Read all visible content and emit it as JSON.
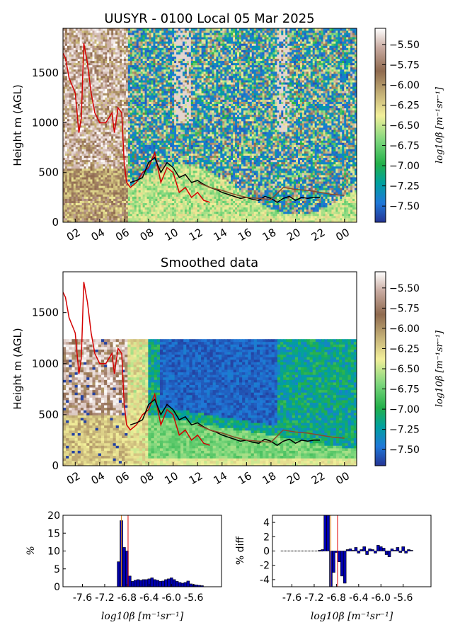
{
  "figure": {
    "title": "UUSYR - 0100 Local 05 Mar 2025",
    "smoothed_title": "Smoothed data",
    "ylabel": "Height m (AGL)",
    "colorbar_label": "log10β [m⁻¹sr⁻¹]",
    "hist_ylabel": "%",
    "diff_ylabel": "% diff",
    "hist_xlabel": "log10β [m⁻¹sr⁻¹]"
  },
  "colors": {
    "red_line": "#d40000",
    "black_line": "#000000",
    "brown_line": "#8b4a2b",
    "bar_fill": "#0000b0",
    "vline_orange": "#d08020",
    "vline_red": "#e00000"
  },
  "chart_data": [
    {
      "type": "heatmap",
      "title": "UUSYR - 0100 Local 05 Mar 2025",
      "ylabel": "Height m (AGL)",
      "xticks": [
        "02",
        "04",
        "06",
        "08",
        "10",
        "12",
        "14",
        "16",
        "18",
        "20",
        "22",
        "00"
      ],
      "yticks": [
        0,
        500,
        1000,
        1500
      ],
      "ylim": [
        0,
        1950
      ],
      "colorbar": {
        "label": "log10β [m⁻¹sr⁻¹]",
        "range": [
          -7.7,
          -5.3
        ],
        "ticks": [
          -5.5,
          -5.75,
          -6.0,
          -6.25,
          -6.5,
          -6.75,
          -7.0,
          -7.25,
          -7.5
        ],
        "tick_labels": [
          "−5.50",
          "−5.75",
          "−6.00",
          "−6.25",
          "−6.50",
          "−6.75",
          "−7.00",
          "−7.25",
          "−7.50"
        ]
      },
      "lines": {
        "red": {
          "x": [
            1.0,
            1.2,
            1.5,
            2.0,
            2.3,
            2.5,
            2.7,
            3.0,
            3.3,
            3.6,
            4.0,
            4.5,
            5.0,
            5.2,
            5.5,
            5.8,
            6.0,
            6.2,
            6.5,
            7.0,
            7.5,
            8.0,
            8.5,
            9.0,
            9.5,
            10.0,
            10.5,
            11.0,
            11.5,
            12.0,
            12.5,
            13.0
          ],
          "y": [
            1700,
            1650,
            1450,
            1300,
            900,
            1050,
            1800,
            1600,
            1300,
            1100,
            1000,
            1000,
            1100,
            900,
            1150,
            1100,
            600,
            400,
            350,
            400,
            500,
            550,
            700,
            400,
            550,
            500,
            300,
            350,
            250,
            300,
            220,
            200
          ]
        },
        "black": {
          "x": [
            6.5,
            7.0,
            7.5,
            8.0,
            8.5,
            9.0,
            9.5,
            10.0,
            10.5,
            11.0,
            11.5,
            12.0,
            12.5,
            13.0,
            13.5,
            14.0,
            14.5,
            15.0,
            15.5,
            16.0,
            16.5,
            17.0,
            17.5,
            18.0,
            18.5,
            19.0,
            19.5,
            20.0,
            20.5,
            21.0,
            21.5,
            22.0
          ],
          "y": [
            400,
            420,
            450,
            600,
            650,
            500,
            600,
            550,
            450,
            480,
            400,
            420,
            380,
            350,
            330,
            300,
            280,
            260,
            240,
            250,
            230,
            220,
            260,
            240,
            200,
            240,
            260,
            220,
            250,
            240,
            250,
            250
          ]
        },
        "brown": {
          "x": [
            12.0,
            13.0,
            14.0,
            15.0,
            16.0,
            17.0,
            18.0,
            19.0,
            20.0,
            21.0,
            22.0,
            23.0,
            24.0
          ],
          "y": [
            400,
            350,
            320,
            280,
            250,
            240,
            230,
            350,
            330,
            320,
            300,
            280,
            270
          ]
        }
      }
    },
    {
      "type": "heatmap",
      "title": "Smoothed data",
      "ylabel": "Height m (AGL)",
      "xticks": [
        "02",
        "04",
        "06",
        "08",
        "10",
        "12",
        "14",
        "16",
        "18",
        "20",
        "22",
        "00"
      ],
      "yticks": [
        0,
        500,
        1000,
        1500
      ],
      "ylim": [
        0,
        1900
      ],
      "colorbar": {
        "label": "log10β [m⁻¹sr⁻¹]",
        "range": [
          -7.7,
          -5.3
        ],
        "ticks": [
          -5.5,
          -5.75,
          -6.0,
          -6.25,
          -6.5,
          -6.75,
          -7.0,
          -7.25,
          -7.5
        ],
        "tick_labels": [
          "−5.50",
          "−5.75",
          "−6.00",
          "−6.25",
          "−6.50",
          "−6.75",
          "−7.00",
          "−7.25",
          "−7.50"
        ]
      }
    },
    {
      "type": "bar",
      "ylabel": "%",
      "xlabel": "log10β [m⁻¹sr⁻¹]",
      "xticks": [
        "-7.6",
        "-7.2",
        "-6.8",
        "-6.4",
        "-6.0",
        "-5.6"
      ],
      "ylim": [
        0,
        20
      ],
      "yticks": [
        0,
        5,
        10,
        15,
        20
      ],
      "x": [
        -6.95,
        -6.9,
        -6.85,
        -6.8,
        -6.75,
        -6.7,
        -6.65,
        -6.6,
        -6.55,
        -6.5,
        -6.45,
        -6.4,
        -6.35,
        -6.3,
        -6.25,
        -6.2,
        -6.15,
        -6.1,
        -6.05,
        -6.0,
        -5.95,
        -5.9,
        -5.85,
        -5.8,
        -5.75,
        -5.7,
        -5.65,
        -5.6,
        -5.55,
        -5.5,
        -5.45
      ],
      "values": [
        7.0,
        18.5,
        11.0,
        10.0,
        3.0,
        1.5,
        1.8,
        2.0,
        1.8,
        2.0,
        2.0,
        2.2,
        2.5,
        2.0,
        1.8,
        1.5,
        1.6,
        2.0,
        2.2,
        2.5,
        2.0,
        1.5,
        1.2,
        1.0,
        1.2,
        1.6,
        0.8,
        0.6,
        0.5,
        0.4,
        0.3
      ],
      "vlines": [
        -6.9,
        -6.78
      ]
    },
    {
      "type": "bar",
      "ylabel": "% diff",
      "xlabel": "log10β [m⁻¹sr⁻¹]",
      "xticks": [
        "-7.6",
        "-7.2",
        "-6.8",
        "-6.4",
        "-6.0",
        "-5.6"
      ],
      "ylim": [
        -5,
        5
      ],
      "yticks": [
        -4,
        -2,
        0,
        2,
        4
      ],
      "x": [
        -7.1,
        -7.05,
        -7.0,
        -6.95,
        -6.9,
        -6.85,
        -6.8,
        -6.75,
        -6.7,
        -6.65,
        -6.6,
        -6.55,
        -6.5,
        -6.45,
        -6.4,
        -6.35,
        -6.3,
        -6.25,
        -6.2,
        -6.15,
        -6.1,
        -6.05,
        -6.0,
        -5.95,
        -5.9,
        -5.85,
        -5.8,
        -5.75,
        -5.7,
        -5.65,
        -5.6,
        -5.55,
        -5.5,
        -5.45
      ],
      "values": [
        0.1,
        0.2,
        5.0,
        5.0,
        -5.0,
        -3.0,
        -0.2,
        -1.5,
        -3.5,
        -4.5,
        0.2,
        0.3,
        0.1,
        0.5,
        -0.3,
        0.2,
        0.6,
        -0.5,
        0.3,
        0.2,
        -0.3,
        0.8,
        0.6,
        0.4,
        -0.5,
        -0.8,
        0.3,
        0.1,
        0.5,
        -0.2,
        0.6,
        -0.3,
        0.2,
        0.1
      ],
      "vlines": [
        -6.9,
        -6.78
      ]
    }
  ]
}
